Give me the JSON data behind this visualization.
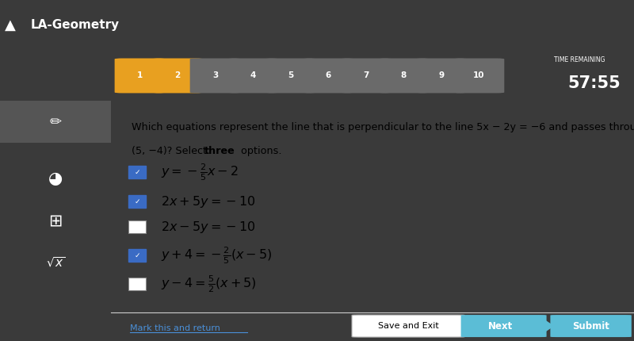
{
  "title_bar_color": "#3d3d8f",
  "title_bar_text": "LA-Geometry",
  "toolbar_bg": "#3a3a3a",
  "content_bg": "#ffffff",
  "left_sidebar_bg": "#4a4a4a",
  "tab_numbers": [
    "1",
    "2",
    "3",
    "4",
    "5",
    "6",
    "7",
    "8",
    "9",
    "10"
  ],
  "tab1_color": "#e8a020",
  "tab2_color": "#e8a020",
  "tab_default_color": "#6a6a6a",
  "time_remaining_label": "TIME REMAINING",
  "time_remaining_value": "57:55",
  "question_text_line1": "Which equations represent the line that is perpendicular to the line 5x − 2y = −6 and passes through the point",
  "question_text_line2": "(5, −4)? Select ",
  "question_bold": "three",
  "question_text_end": " options.",
  "options": [
    {
      "checked": true,
      "text": "$y = -\\frac{2}{5}x - 2$"
    },
    {
      "checked": true,
      "text": "$2x + 5y = -10$"
    },
    {
      "checked": false,
      "text": "$2x - 5y = -10$"
    },
    {
      "checked": true,
      "text": "$y + 4 = -\\frac{2}{5}(x - 5)$"
    },
    {
      "checked": false,
      "text": "$y - 4 = \\frac{5}{2}(x + 5)$"
    }
  ],
  "footer_bg": "#f0f0f0",
  "mark_return_text": "Mark this and return",
  "mark_return_color": "#4a90d9",
  "save_exit_btn_bg": "#ffffff",
  "save_exit_btn_text": "Save and Exit",
  "next_btn_bg": "#5bbdd6",
  "next_btn_text": "Next",
  "submit_btn_bg": "#5bbdd6",
  "submit_btn_text": "Submit",
  "checkbox_checked_color": "#3a6bc4",
  "checkbox_unchecked_color": "#ffffff",
  "checkbox_border_color": "#888888"
}
